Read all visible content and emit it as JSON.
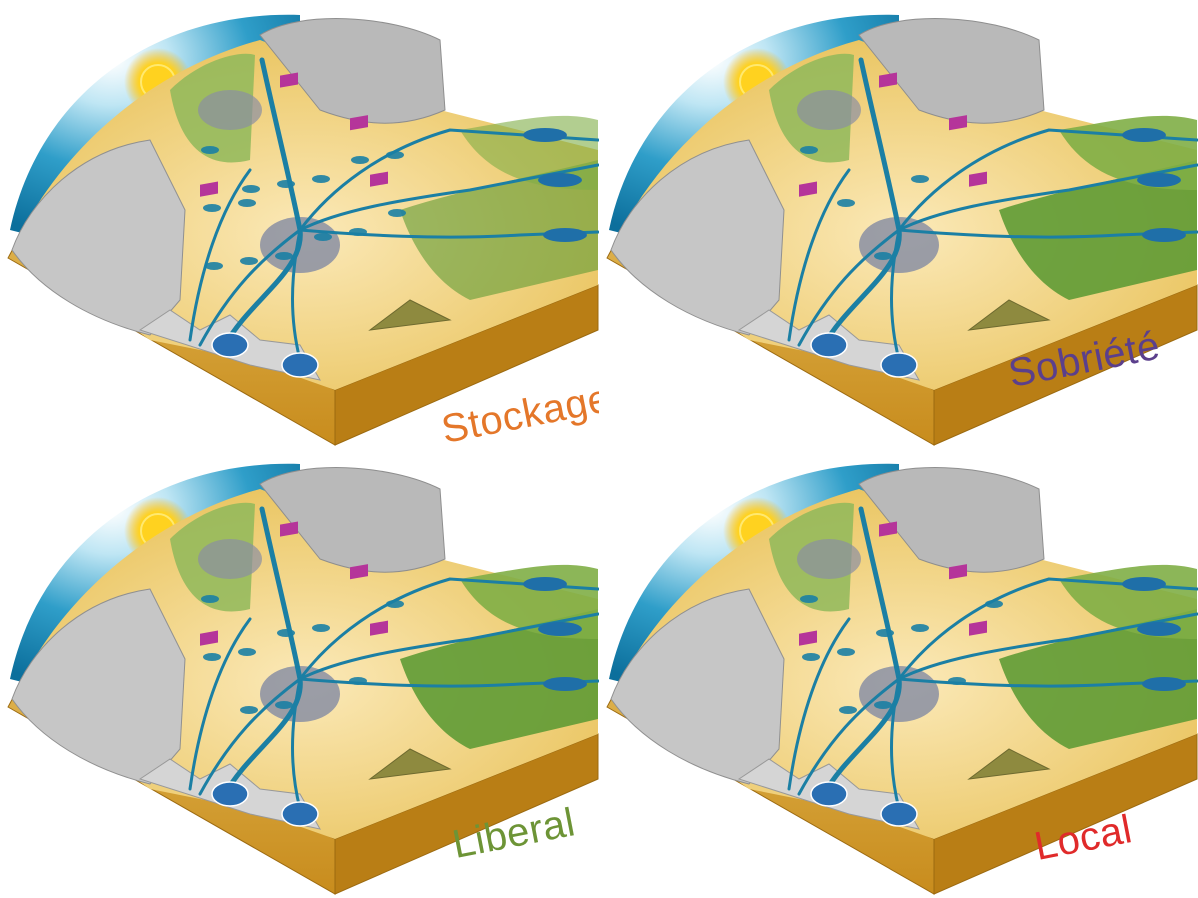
{
  "scenarios": [
    {
      "key": "stockage",
      "label": "Stockage",
      "label_color": "#e4772a",
      "reservoirs": "many"
    },
    {
      "key": "sobriete",
      "label": "Sobriété",
      "label_color": "#5b3f8c",
      "reservoirs": "few"
    },
    {
      "key": "liberal",
      "label": "Liberal",
      "label_color": "#6d9436",
      "reservoirs": "medium"
    },
    {
      "key": "local",
      "label": "Local",
      "label_color": "#e02a2a",
      "reservoirs": "medium"
    }
  ],
  "palette": {
    "sky": "#2f9ec9",
    "sun": "#ffd21f",
    "sand": "#f3d58a",
    "field": "#e9c35c",
    "vegetation": "#5f9b35",
    "rock": "#b9b9b9",
    "water": "#1b7fa4",
    "soil": "#c88c1d",
    "urban": "#8a8fa3",
    "industry": "#b5359a"
  }
}
